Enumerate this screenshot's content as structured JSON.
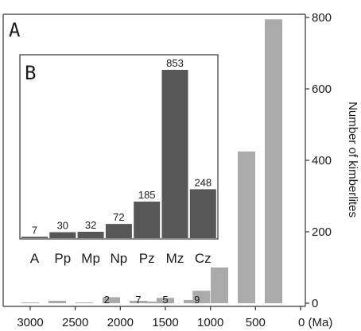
{
  "chart_data": [
    {
      "panel": "A",
      "type": "bar",
      "x": [
        3000,
        2700,
        2400,
        2100,
        1800,
        1650,
        1500,
        1200,
        1100,
        900,
        600,
        300,
        100
      ],
      "values": [
        2,
        7,
        2,
        17,
        7,
        5,
        15,
        9,
        35,
        100,
        425,
        795,
        0
      ],
      "data_labels": [
        {
          "x": 2150,
          "text": "2"
        },
        {
          "x": 1800,
          "text": "7"
        },
        {
          "x": 1500,
          "text": "5"
        },
        {
          "x": 1150,
          "text": "9"
        }
      ],
      "x_tick_labels": [
        "3000",
        "2500",
        "2000",
        "1500",
        "1000",
        "500",
        "0 (Ma)"
      ],
      "x_ticks": [
        3000,
        2500,
        2000,
        1500,
        1000,
        500,
        0
      ],
      "xlim": [
        3150,
        0
      ],
      "y_tick_labels": [
        "0",
        "200",
        "400",
        "600",
        "800"
      ],
      "y_ticks": [
        0,
        200,
        400,
        600,
        800
      ],
      "ylim": [
        0,
        800
      ],
      "ylabel": "Number of kimberlites",
      "color": "#aaaaaa"
    },
    {
      "panel": "B",
      "type": "bar",
      "categories": [
        "A",
        "Pp",
        "Mp",
        "Np",
        "Pz",
        "Mz",
        "Cz"
      ],
      "values": [
        7,
        30,
        32,
        72,
        185,
        853,
        248
      ],
      "value_labels": [
        "7",
        "30",
        "32",
        "72",
        "185",
        "853",
        "248"
      ],
      "color": "#575757"
    }
  ],
  "panel_labels": [
    "A",
    "B"
  ]
}
